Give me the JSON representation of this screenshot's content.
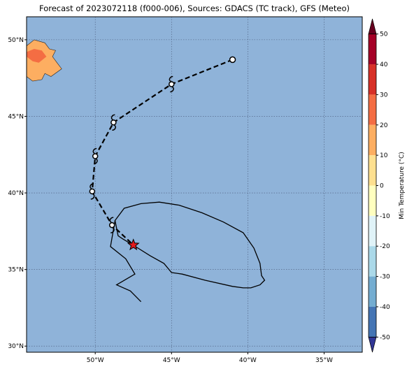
{
  "title": "Forecast of 2023072118 (f000-006), Sources: GDACS (TC track), GFS (Meteo)",
  "colors": {
    "ocean": "#8fb3d9",
    "land_warm": "#fdae61",
    "land_hot": "#f46d43",
    "track": "#000000",
    "current_position_star": "#e41a1c",
    "gridline": "#4a5a7a"
  },
  "map": {
    "lon_range": [
      -54.5,
      -32.5
    ],
    "lat_range": [
      29.6,
      51.5
    ],
    "lon_ticks": [
      {
        "value": -50,
        "label": "50°W"
      },
      {
        "value": -45,
        "label": "45°W"
      },
      {
        "value": -40,
        "label": "40°W"
      },
      {
        "value": -35,
        "label": "35°W"
      }
    ],
    "lat_ticks": [
      {
        "value": 50,
        "label": "50°N"
      },
      {
        "value": 45,
        "label": "45°N"
      },
      {
        "value": 40,
        "label": "40°N"
      },
      {
        "value": 35,
        "label": "35°N"
      },
      {
        "value": 30,
        "label": "30°N"
      }
    ],
    "grid": true
  },
  "track": {
    "points": [
      {
        "lon": -41.0,
        "lat": 48.7,
        "marker": "circle"
      },
      {
        "lon": -45.0,
        "lat": 47.1,
        "marker": "storm"
      },
      {
        "lon": -48.8,
        "lat": 44.6,
        "marker": "storm"
      },
      {
        "lon": -50.0,
        "lat": 42.4,
        "marker": "storm"
      },
      {
        "lon": -50.2,
        "lat": 40.1,
        "marker": "storm"
      },
      {
        "lon": -48.9,
        "lat": 37.9,
        "marker": "storm"
      },
      {
        "lon": -47.5,
        "lat": 36.6,
        "marker": "star"
      }
    ],
    "line_style": "dashed"
  },
  "forecast_cone": {
    "polygon": [
      [
        -48.7,
        38.2
      ],
      [
        -48.1,
        39.0
      ],
      [
        -47.0,
        39.3
      ],
      [
        -45.8,
        39.4
      ],
      [
        -44.5,
        39.2
      ],
      [
        -43.0,
        38.7
      ],
      [
        -41.6,
        38.1
      ],
      [
        -40.3,
        37.4
      ],
      [
        -39.6,
        36.4
      ],
      [
        -39.2,
        35.4
      ],
      [
        -39.1,
        34.6
      ],
      [
        -38.9,
        34.3
      ],
      [
        -39.2,
        34.0
      ],
      [
        -39.8,
        33.8
      ],
      [
        -40.3,
        33.8
      ],
      [
        -41.0,
        33.9
      ],
      [
        -42.8,
        34.3
      ],
      [
        -44.3,
        34.7
      ],
      [
        -45.0,
        34.8
      ],
      [
        -45.5,
        35.4
      ],
      [
        -46.4,
        35.9
      ],
      [
        -47.2,
        36.4
      ],
      [
        -48.2,
        37.0
      ],
      [
        -48.5,
        37.2
      ],
      [
        -48.6,
        37.7
      ],
      [
        -48.7,
        38.2
      ]
    ],
    "tail": [
      [
        -48.7,
        38.2
      ],
      [
        -49.0,
        36.5
      ],
      [
        -48.0,
        35.7
      ],
      [
        -47.4,
        34.7
      ],
      [
        -48.6,
        34.0
      ],
      [
        -47.7,
        33.6
      ],
      [
        -47.0,
        32.9
      ]
    ]
  },
  "land": {
    "main_shape": [
      [
        -54.5,
        49.6
      ],
      [
        -54.0,
        50.0
      ],
      [
        -53.3,
        49.8
      ],
      [
        -53.0,
        49.4
      ],
      [
        -52.6,
        49.3
      ],
      [
        -52.8,
        48.9
      ],
      [
        -52.5,
        48.5
      ],
      [
        -52.2,
        48.1
      ],
      [
        -52.9,
        47.6
      ],
      [
        -53.3,
        47.8
      ],
      [
        -53.5,
        47.4
      ],
      [
        -54.1,
        47.3
      ],
      [
        -54.5,
        47.6
      ]
    ],
    "hot_patch": [
      [
        -54.5,
        49.2
      ],
      [
        -54.0,
        49.4
      ],
      [
        -53.5,
        49.3
      ],
      [
        -53.2,
        48.9
      ],
      [
        -53.7,
        48.5
      ],
      [
        -54.1,
        48.6
      ],
      [
        -54.5,
        48.9
      ]
    ]
  },
  "colorbar": {
    "label": "Min Temperature (°C)",
    "ticks": [
      50,
      40,
      30,
      20,
      10,
      0,
      -10,
      -20,
      -30,
      -40,
      -50
    ],
    "bands": [
      {
        "from": 50,
        "to": 55,
        "color": "#67001f"
      },
      {
        "from": 40,
        "to": 50,
        "color": "#a50026"
      },
      {
        "from": 30,
        "to": 40,
        "color": "#d73027"
      },
      {
        "from": 20,
        "to": 30,
        "color": "#f46d43"
      },
      {
        "from": 10,
        "to": 20,
        "color": "#fdae61"
      },
      {
        "from": 0,
        "to": 10,
        "color": "#fee090"
      },
      {
        "from": -10,
        "to": 0,
        "color": "#ffffbf"
      },
      {
        "from": -20,
        "to": -10,
        "color": "#e0f3f8"
      },
      {
        "from": -30,
        "to": -20,
        "color": "#abd9e9"
      },
      {
        "from": -40,
        "to": -30,
        "color": "#74add1"
      },
      {
        "from": -50,
        "to": -40,
        "color": "#4575b4"
      },
      {
        "from": -55,
        "to": -50,
        "color": "#313695"
      }
    ]
  }
}
